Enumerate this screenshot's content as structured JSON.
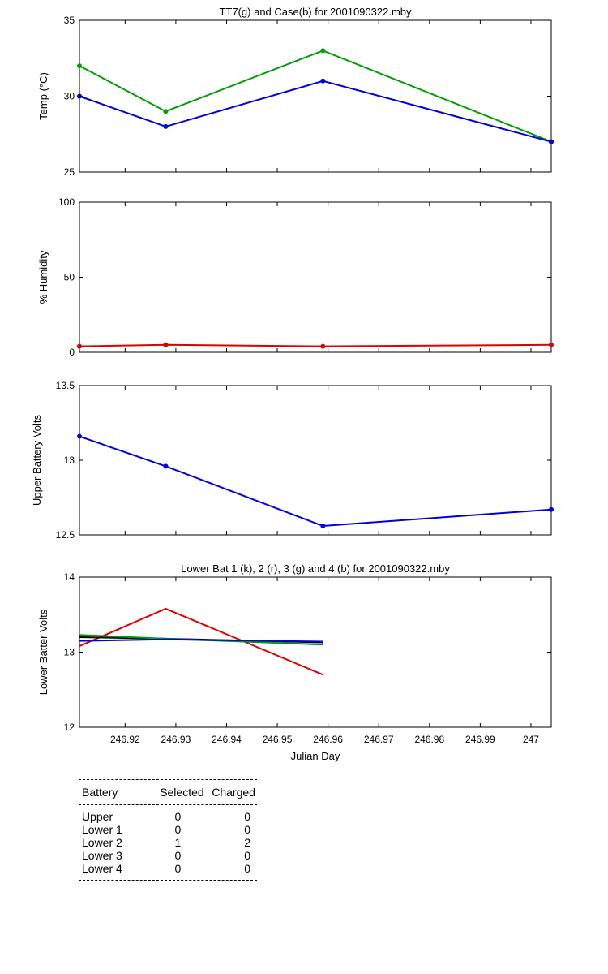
{
  "chart_data": [
    {
      "type": "line",
      "title": "TT7(g) and Case(b) for 2001090322.mby",
      "xlabel": "",
      "ylabel": "Temp  (°C)",
      "xlim": [
        246.911,
        247.004
      ],
      "ylim": [
        25,
        35
      ],
      "yticks": [
        "25",
        "30",
        "35"
      ],
      "x": [
        246.911,
        246.928,
        246.959,
        247.004
      ],
      "series": [
        {
          "color": "#00a000",
          "values": [
            32,
            29,
            33,
            27
          ]
        },
        {
          "color": "#0000e0",
          "values": [
            30,
            28,
            31,
            27
          ]
        }
      ],
      "grid": false
    },
    {
      "type": "line",
      "title": "",
      "xlabel": "",
      "ylabel": "% Humidity",
      "xlim": [
        246.911,
        247.004
      ],
      "ylim": [
        0,
        100
      ],
      "yticks": [
        "0",
        "50",
        "100"
      ],
      "x": [
        246.911,
        246.928,
        246.959,
        247.004
      ],
      "series": [
        {
          "color": "#e00000",
          "values": [
            4,
            5,
            4,
            5
          ]
        }
      ],
      "grid": false
    },
    {
      "type": "line",
      "title": "",
      "xlabel": "",
      "ylabel": "Upper Battery Volts",
      "xlim": [
        246.911,
        247.004
      ],
      "ylim": [
        12.5,
        13.5
      ],
      "yticks": [
        "12.5",
        "13",
        "13.5"
      ],
      "x": [
        246.911,
        246.928,
        246.959,
        247.004
      ],
      "series": [
        {
          "color": "#0000e0",
          "values": [
            13.16,
            12.96,
            12.56,
            12.67
          ]
        }
      ],
      "grid": false
    },
    {
      "type": "line",
      "title": "Lower Bat 1 (k), 2 (r), 3 (g) and 4 (b) for 2001090322.mby",
      "xlabel": "Julian Day",
      "ylabel": "Lower Batter Volts",
      "xlim": [
        246.911,
        247.004
      ],
      "ylim": [
        12,
        14
      ],
      "yticks": [
        "12",
        "13",
        "14"
      ],
      "xticks": [
        {
          "v": 246.92,
          "label": "246.92"
        },
        {
          "v": 246.93,
          "label": "246.93"
        },
        {
          "v": 246.94,
          "label": "246.94"
        },
        {
          "v": 246.95,
          "label": "246.95"
        },
        {
          "v": 246.96,
          "label": "246.96"
        },
        {
          "v": 246.97,
          "label": "246.97"
        },
        {
          "v": 246.98,
          "label": "246.98"
        },
        {
          "v": 246.99,
          "label": "246.99"
        },
        {
          "v": 247.0,
          "label": "247"
        }
      ],
      "x": [
        246.911,
        246.928,
        246.959
      ],
      "series": [
        {
          "color": "#e00000",
          "values": [
            13.08,
            13.58,
            12.7
          ]
        },
        {
          "color": "#000000",
          "values": [
            13.2,
            13.18,
            13.13
          ]
        },
        {
          "color": "#00a000",
          "values": [
            13.23,
            13.18,
            13.1
          ]
        },
        {
          "color": "#0000e0",
          "values": [
            13.15,
            13.17,
            13.14
          ]
        }
      ],
      "grid": false
    }
  ],
  "battery_table": {
    "headers": [
      "Battery",
      "Selected",
      "Charged"
    ],
    "rows": [
      {
        "battery": "Upper",
        "selected": "0",
        "charged": "0"
      },
      {
        "battery": "Lower 1",
        "selected": "0",
        "charged": "0"
      },
      {
        "battery": "Lower 2",
        "selected": "1",
        "charged": "2"
      },
      {
        "battery": "Lower 3",
        "selected": "0",
        "charged": "0"
      },
      {
        "battery": "Lower 4",
        "selected": "0",
        "charged": "0"
      }
    ]
  }
}
